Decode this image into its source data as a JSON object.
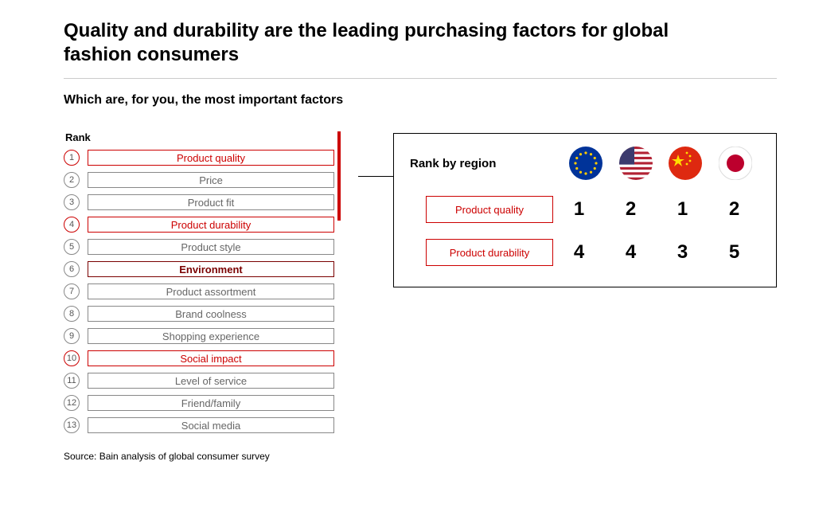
{
  "title": "Quality and durability are the leading purchasing factors for global fashion consumers",
  "subtitle": "Which are, for you, the most important factors",
  "rank_heading": "Rank",
  "colors": {
    "text_default": "#333333",
    "text_muted": "#666666",
    "highlight": "#cc0000",
    "highlight_dark": "#7a0000",
    "border_default": "#888888",
    "border_light": "#bbbbbb",
    "bracket": "#cc0000",
    "panel_border": "#000000",
    "rule": "#cccccc"
  },
  "factors": [
    {
      "n": "1",
      "label": "Product quality",
      "style": "highlight"
    },
    {
      "n": "2",
      "label": "Price",
      "style": "default"
    },
    {
      "n": "3",
      "label": "Product fit",
      "style": "default"
    },
    {
      "n": "4",
      "label": "Product durability",
      "style": "highlight"
    },
    {
      "n": "5",
      "label": "Product style",
      "style": "default"
    },
    {
      "n": "6",
      "label": "Environment",
      "style": "highlight_dark"
    },
    {
      "n": "7",
      "label": "Product assortment",
      "style": "default"
    },
    {
      "n": "8",
      "label": "Brand coolness",
      "style": "default"
    },
    {
      "n": "9",
      "label": "Shopping experience",
      "style": "default"
    },
    {
      "n": "10",
      "label": "Social impact",
      "style": "highlight"
    },
    {
      "n": "11",
      "label": "Level of service",
      "style": "default"
    },
    {
      "n": "12",
      "label": "Friend/family",
      "style": "default"
    },
    {
      "n": "13",
      "label": "Social media",
      "style": "default"
    }
  ],
  "region_panel": {
    "title": "Rank by region",
    "regions": [
      {
        "id": "eu",
        "name": "European Union"
      },
      {
        "id": "us",
        "name": "United States"
      },
      {
        "id": "cn",
        "name": "China"
      },
      {
        "id": "jp",
        "name": "Japan"
      }
    ],
    "rows": [
      {
        "factor": "Product quality",
        "values": [
          "1",
          "2",
          "1",
          "2"
        ]
      },
      {
        "factor": "Product durability",
        "values": [
          "4",
          "4",
          "3",
          "5"
        ]
      }
    ],
    "factor_border": "#cc0000",
    "factor_text": "#cc0000",
    "value_fontsize": 24
  },
  "source": "Source: Bain analysis of global consumer survey"
}
